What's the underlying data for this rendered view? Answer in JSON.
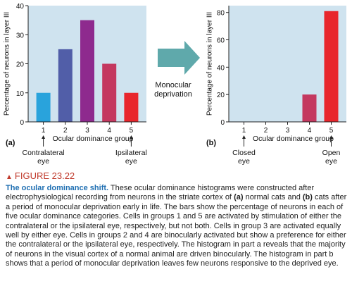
{
  "colors": {
    "panel_bg": "#cfe3ef",
    "arrow": "#5fa9ab",
    "caption_label": "#c0392b",
    "caption_lead": "#1f6fb2"
  },
  "arrow_label": [
    "Monocular",
    "deprivation"
  ],
  "chart_data": [
    {
      "type": "bar",
      "panel": "(a)",
      "ylabel": "Percentage of neurons in layer III",
      "xlabel": "Ocular dominance group",
      "categories": [
        "1",
        "2",
        "3",
        "4",
        "5"
      ],
      "values": [
        10,
        25,
        35,
        20,
        10
      ],
      "colors": [
        "#29a3dc",
        "#515ea8",
        "#8e2a8e",
        "#c4385f",
        "#e8262c"
      ],
      "ylim": [
        0,
        40
      ],
      "yticks": [
        0,
        10,
        20,
        30,
        40
      ],
      "left_annotation": [
        "Contralateral",
        "eye"
      ],
      "right_annotation": [
        "Ipsilateral",
        "eye"
      ]
    },
    {
      "type": "bar",
      "panel": "(b)",
      "ylabel": "Percentage of neurons in layer III",
      "xlabel": "Ocular dominance group",
      "categories": [
        "1",
        "2",
        "3",
        "4",
        "5"
      ],
      "values": [
        0,
        0,
        0,
        20,
        81
      ],
      "colors": [
        "#29a3dc",
        "#515ea8",
        "#8e2a8e",
        "#c4385f",
        "#e8262c"
      ],
      "ylim": [
        0,
        85
      ],
      "yticks": [
        0,
        20,
        40,
        60,
        80
      ],
      "left_annotation": [
        "Closed",
        "eye"
      ],
      "right_annotation": [
        "Open",
        "eye"
      ]
    }
  ],
  "caption": {
    "label": "FIGURE 23.22",
    "lead": "The ocular dominance shift.",
    "t1": " These ocular dominance histograms were constructed after electrophysiological recording from neurons in the striate cortex of ",
    "a": "(a)",
    "t2": " normal cats and ",
    "b": "(b)",
    "t3": " cats after a period of monocular deprivation early in life. The bars show the percentage of neurons in each of five ocular dominance categories. Cells in groups 1 and 5 are activated by stimulation of either the contralateral or the ipsilateral eye, respectively, but not both. Cells in group 3 are activated equally well by either eye. Cells in groups 2 and 4 are binocularly activated but show a preference for either the contralateral or the ipsilateral eye, respectively. The histogram in part a reveals that the majority of neurons in the visual cortex of a normal animal are driven binocularly. The histogram in part b shows that a period of monocular deprivation leaves few neurons responsive to the deprived eye."
  }
}
